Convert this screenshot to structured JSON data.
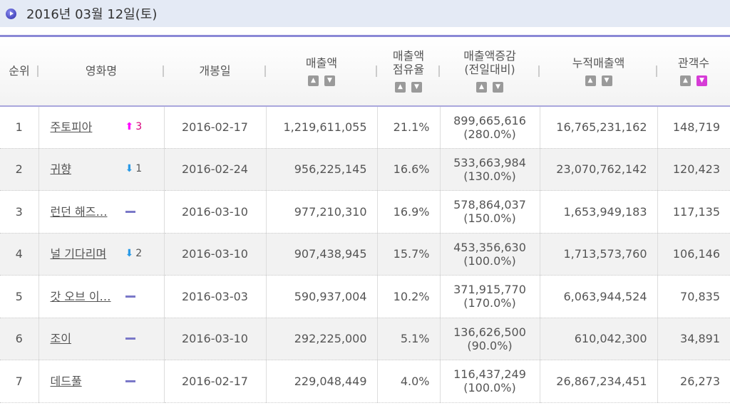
{
  "date_title": "2016년 03월 12일(토)",
  "headers": [
    "순위",
    "영화명",
    "개봉일",
    "매출액",
    "매출액\n점유율",
    "매출액증감\n(전일대비)",
    "누적매출액",
    "관객수"
  ],
  "sort_active": {
    "column": "관객수",
    "direction": "desc",
    "color": "#d63cd6"
  },
  "rows": [
    {
      "rank": "1",
      "title": "주토피아",
      "change": "up",
      "change_value": "3",
      "open": "2016-02-17",
      "sales": "1,219,611,055",
      "share": "21.1%",
      "diff": "899,665,616",
      "diff_pct": "(280.0%)",
      "cum": "16,765,231,162",
      "aud": "148,719"
    },
    {
      "rank": "2",
      "title": "귀향",
      "change": "down",
      "change_value": "1",
      "open": "2016-02-24",
      "sales": "956,225,145",
      "share": "16.6%",
      "diff": "533,663,984",
      "diff_pct": "(130.0%)",
      "cum": "23,070,762,142",
      "aud": "120,423"
    },
    {
      "rank": "3",
      "title": "런던 해즈…",
      "change": "same",
      "change_value": "",
      "open": "2016-03-10",
      "sales": "977,210,310",
      "share": "16.9%",
      "diff": "578,864,037",
      "diff_pct": "(150.0%)",
      "cum": "1,653,949,183",
      "aud": "117,135"
    },
    {
      "rank": "4",
      "title": "널 기다리며",
      "change": "down",
      "change_value": "2",
      "open": "2016-03-10",
      "sales": "907,438,945",
      "share": "15.7%",
      "diff": "453,356,630",
      "diff_pct": "(100.0%)",
      "cum": "1,713,573,760",
      "aud": "106,146"
    },
    {
      "rank": "5",
      "title": "갓 오브 이…",
      "change": "same",
      "change_value": "",
      "open": "2016-03-03",
      "sales": "590,937,004",
      "share": "10.2%",
      "diff": "371,915,770",
      "diff_pct": "(170.0%)",
      "cum": "6,063,944,524",
      "aud": "70,835"
    },
    {
      "rank": "6",
      "title": "조이",
      "change": "same",
      "change_value": "",
      "open": "2016-03-10",
      "sales": "292,225,000",
      "share": "5.1%",
      "diff": "136,626,500",
      "diff_pct": "(90.0%)",
      "cum": "610,042,300",
      "aud": "34,891"
    },
    {
      "rank": "7",
      "title": "데드풀",
      "change": "same",
      "change_value": "",
      "open": "2016-02-17",
      "sales": "229,048,449",
      "share": "4.0%",
      "diff": "116,437,249",
      "diff_pct": "(100.0%)",
      "cum": "26,867,234,451",
      "aud": "26,273"
    }
  ]
}
